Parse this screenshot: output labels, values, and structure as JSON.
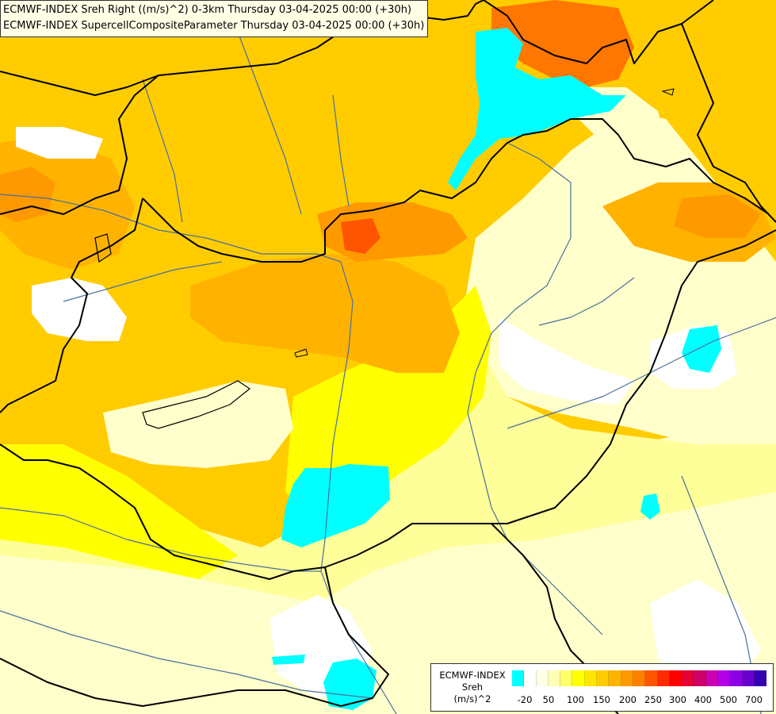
{
  "header": {
    "line1": "ECMWF-INDEX Sreh Right ((m/s)^2) 0-3km Thursday 03-04-2025 00:00 (+30h)",
    "line2": "ECMWF-INDEX SupercellCompositeParameter Thursday 03-04-2025 00:00 (+30h)"
  },
  "legend": {
    "title_line1": "ECMWF-INDEX",
    "title_line2": "Sreh",
    "title_line3": "(m/s)^2",
    "colors": [
      "#00ffff",
      "#ffffff",
      "#ffffe6",
      "#ffffb3",
      "#ffff66",
      "#ffff00",
      "#ffe600",
      "#ffcc00",
      "#ffb300",
      "#ff9900",
      "#ff7f00",
      "#ff5500",
      "#ff2a00",
      "#ff0000",
      "#e60033",
      "#cc0066",
      "#cc00b3",
      "#b300e6",
      "#8c00e6",
      "#6600cc",
      "#3300b3"
    ],
    "ticks": [
      "-20",
      "50",
      "100",
      "150",
      "200",
      "250",
      "300",
      "400",
      "500",
      "700"
    ]
  },
  "colors": {
    "cyan": "#00ffff",
    "white": "#ffffff",
    "pale_cream": "#ffffcc",
    "light_yellow": "#ffff99",
    "yellow": "#ffff00",
    "gold": "#ffe600",
    "amber": "#ffcc00",
    "light_orange": "#ffb300",
    "orange": "#ff9900",
    "dark_orange": "#ff7700",
    "red_orange": "#ff5500",
    "border": "#000000",
    "river": "#4a6f9a"
  }
}
